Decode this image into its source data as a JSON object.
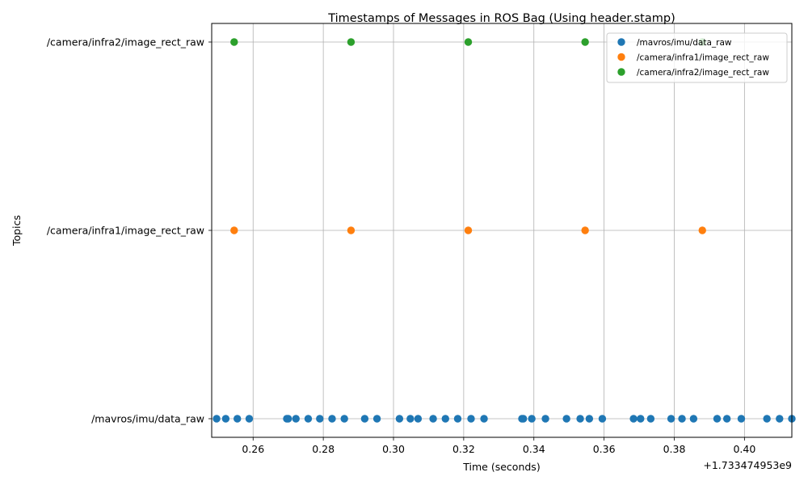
{
  "chart_data": {
    "type": "scatter",
    "title": "Timestamps of Messages in ROS Bag (Using header.stamp)",
    "xlabel": "Time (seconds)",
    "ylabel": "Topics",
    "x_offset_label": "+1.733474953e9",
    "xlim": [
      0.2482,
      0.4135
    ],
    "x_ticks": [
      0.26,
      0.28,
      0.3,
      0.32,
      0.34,
      0.36,
      0.38,
      0.4
    ],
    "x_tick_labels": [
      "0.26",
      "0.28",
      "0.30",
      "0.32",
      "0.34",
      "0.36",
      "0.38",
      "0.40"
    ],
    "categories": [
      "/mavros/imu/data_raw",
      "/camera/infra1/image_rect_raw",
      "/camera/infra2/image_rect_raw"
    ],
    "grid": true,
    "legend_position": "top-right",
    "series": [
      {
        "name": "/mavros/imu/data_raw",
        "category": "/mavros/imu/data_raw",
        "color": "#1f77b4",
        "x": [
          0.2496,
          0.2522,
          0.2555,
          0.2589,
          0.2696,
          0.27,
          0.2722,
          0.2757,
          0.279,
          0.2825,
          0.286,
          0.2918,
          0.2953,
          0.3017,
          0.3048,
          0.307,
          0.3113,
          0.3148,
          0.3183,
          0.3221,
          0.3258,
          0.3366,
          0.337,
          0.3394,
          0.3433,
          0.3493,
          0.3532,
          0.3558,
          0.3595,
          0.3684,
          0.3704,
          0.3733,
          0.3791,
          0.3822,
          0.3855,
          0.3922,
          0.395,
          0.3991,
          0.4064,
          0.41,
          0.4135
        ]
      },
      {
        "name": "/camera/infra1/image_rect_raw",
        "category": "/camera/infra1/image_rect_raw",
        "color": "#ff7f0e",
        "x": [
          0.2546,
          0.2879,
          0.3213,
          0.3546,
          0.388
        ]
      },
      {
        "name": "/camera/infra2/image_rect_raw",
        "category": "/camera/infra2/image_rect_raw",
        "color": "#2ca02c",
        "x": [
          0.2546,
          0.2879,
          0.3213,
          0.3546,
          0.388
        ]
      }
    ]
  }
}
